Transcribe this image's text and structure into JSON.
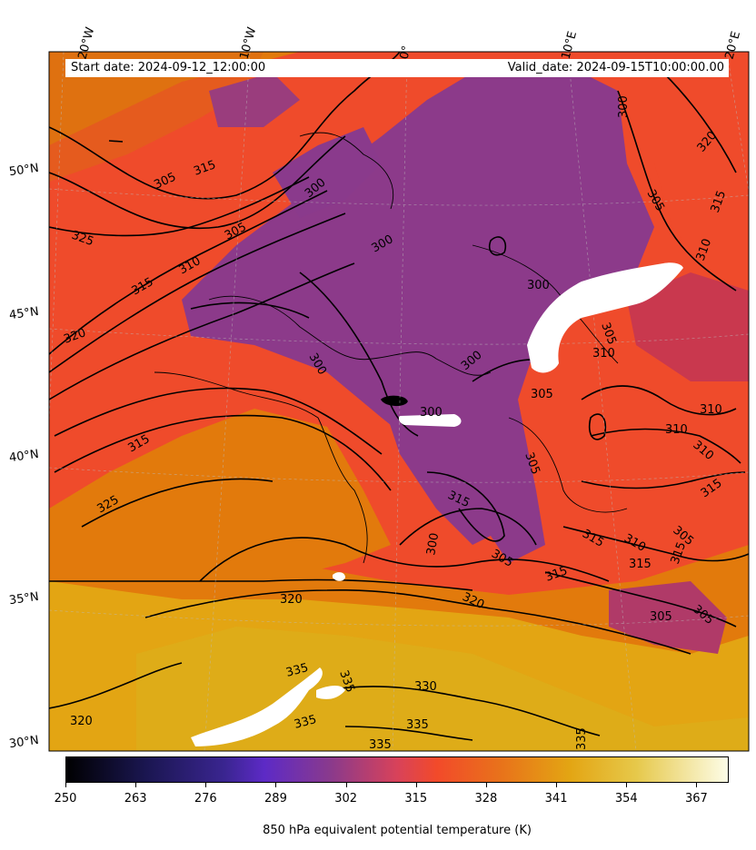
{
  "header": {
    "start_date": "Start date: 2024-09-12_12:00:00",
    "valid_date": "Valid_date: 2024-09-15T10:00:00.00"
  },
  "longitude_labels": [
    "20°W",
    "10°W",
    "0°",
    "10°E",
    "20°E"
  ],
  "latitude_labels": [
    "50°N",
    "45°N",
    "40°N",
    "35°N",
    "30°N"
  ],
  "colorbar": {
    "ticks": [
      "250",
      "263",
      "276",
      "289",
      "302",
      "315",
      "328",
      "341",
      "354",
      "367"
    ],
    "range": [
      250,
      373
    ],
    "colormap": "CMRmap-like: black → indigo → purple → red-orange → orange → gold → pale yellow",
    "title": "850 hPa equivalent potential temperature (K)"
  },
  "contour_labels": [
    "300",
    "305",
    "310",
    "315",
    "320",
    "325",
    "330",
    "335"
  ],
  "colors": {
    "cold_purple": "#8a3a8c",
    "mid_red": "#ee4a2e",
    "warm_orange": "#e27a0c",
    "hot_gold": "#e3a513",
    "missing": "#ffffff"
  }
}
